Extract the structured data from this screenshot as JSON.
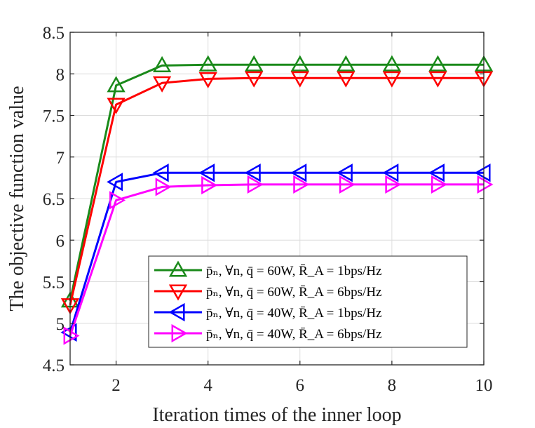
{
  "chart_data": {
    "type": "line",
    "title": "",
    "xlabel": "Iteration times of the inner loop",
    "ylabel": "The objective function value",
    "xlim": [
      1,
      10
    ],
    "ylim": [
      4.5,
      8.5
    ],
    "xticks": [
      2,
      4,
      6,
      8,
      10
    ],
    "yticks": [
      4.5,
      5,
      5.5,
      6,
      6.5,
      7,
      7.5,
      8,
      8.5
    ],
    "xtick_labels": [
      "2",
      "4",
      "6",
      "8",
      "10"
    ],
    "ytick_labels": [
      "4.5",
      "5",
      "5.5",
      "6",
      "6.5",
      "7",
      "7.5",
      "8",
      "8.5"
    ],
    "grid": true,
    "legend_position": "lower-right",
    "x": [
      1,
      2,
      3,
      4,
      5,
      6,
      7,
      8,
      9,
      10
    ],
    "series": [
      {
        "name": "p̄_n, ∀n, q̄ = 60W, R̄_A = 1bps/Hz",
        "legend_label": "p̄ₙ, ∀n, q̄ = 60W, R̄_A = 1bps/Hz",
        "color": "#1a8a1a",
        "marker": "triangle-up",
        "values": [
          5.27,
          7.86,
          8.1,
          8.11,
          8.11,
          8.11,
          8.11,
          8.11,
          8.11,
          8.11
        ]
      },
      {
        "name": "p̄_n, ∀n, q̄ = 60W, R̄_A = 6bps/Hz",
        "legend_label": "p̄ₙ, ∀n, q̄ = 60W, R̄_A = 6bps/Hz",
        "color": "#ff0000",
        "marker": "triangle-down",
        "values": [
          5.22,
          7.63,
          7.89,
          7.94,
          7.95,
          7.95,
          7.95,
          7.95,
          7.95,
          7.95
        ]
      },
      {
        "name": "p̄_n, ∀n, q̄ = 40W, R̄_A = 1bps/Hz",
        "legend_label": "p̄ₙ, ∀n, q̄ = 40W, R̄_A = 1bps/Hz",
        "color": "#0000ff",
        "marker": "triangle-left",
        "values": [
          4.89,
          6.7,
          6.81,
          6.81,
          6.81,
          6.81,
          6.81,
          6.81,
          6.81,
          6.81
        ]
      },
      {
        "name": "p̄_n, ∀n, q̄ = 40W, R̄_A = 6bps/Hz",
        "legend_label": "p̄ₙ, ∀n, q̄ = 40W, R̄_A = 6bps/Hz",
        "color": "#ff00ff",
        "marker": "triangle-right",
        "values": [
          4.85,
          6.48,
          6.64,
          6.66,
          6.67,
          6.67,
          6.67,
          6.67,
          6.67,
          6.67
        ]
      }
    ]
  }
}
